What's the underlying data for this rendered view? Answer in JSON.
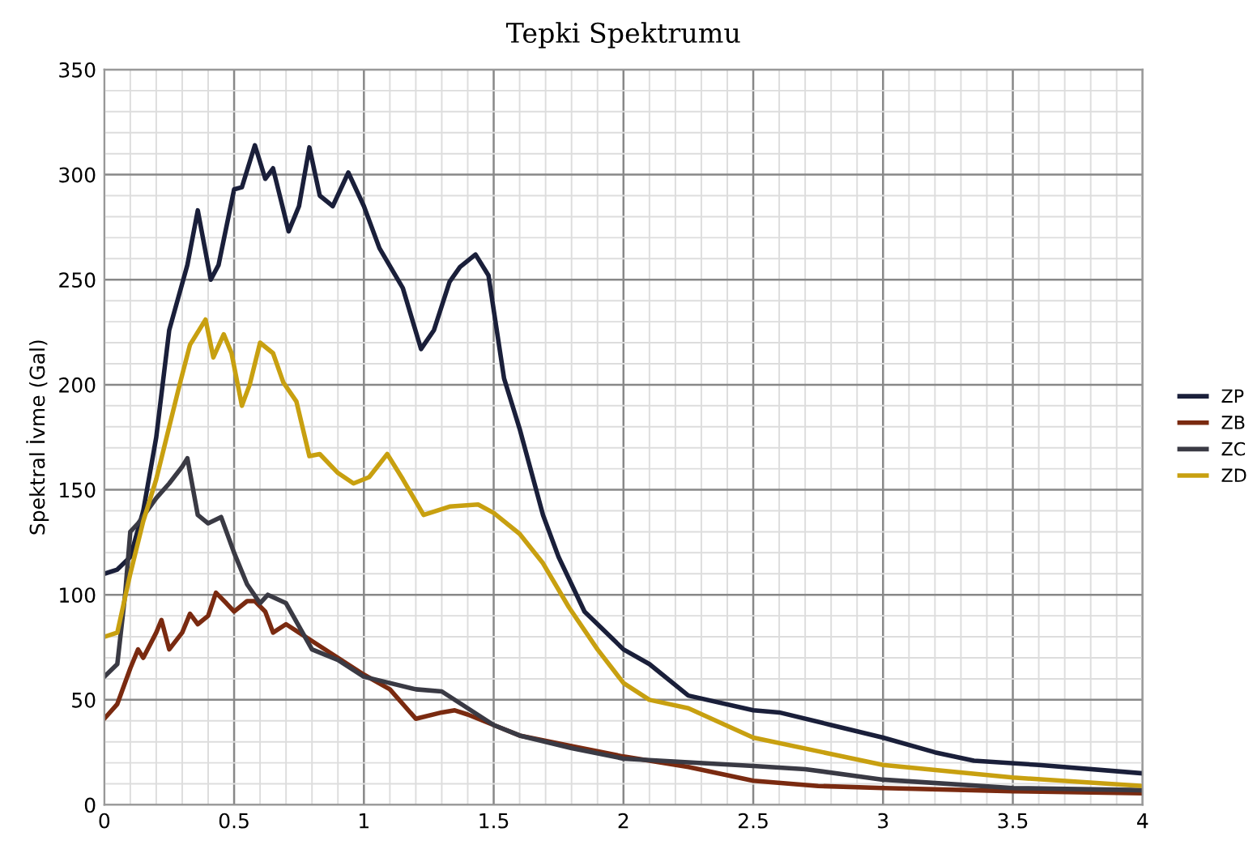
{
  "chart_data": {
    "type": "line",
    "title": "Tepki Spektrumu",
    "ylabel": "Spektral İvme (Gal)",
    "xlim": [
      0,
      4
    ],
    "xticks": [
      0,
      0.5,
      1,
      1.5,
      2,
      2.5,
      3,
      3.5,
      4
    ],
    "ylim": [
      0,
      350
    ],
    "yticks": [
      0,
      50,
      100,
      150,
      200,
      250,
      300,
      350
    ],
    "grid": true,
    "legend": "right",
    "line_style": "solid",
    "series": [
      {
        "name": "ZP",
        "color": "#1a1f3a",
        "x": [
          0,
          0.05,
          0.1,
          0.15,
          0.2,
          0.25,
          0.32,
          0.36,
          0.41,
          0.44,
          0.5,
          0.53,
          0.58,
          0.62,
          0.65,
          0.71,
          0.75,
          0.79,
          0.83,
          0.88,
          0.94,
          1.0,
          1.06,
          1.15,
          1.22,
          1.27,
          1.33,
          1.37,
          1.43,
          1.48,
          1.54,
          1.6,
          1.69,
          1.75,
          1.85,
          2.0,
          2.1,
          2.25,
          2.5,
          2.6,
          2.8,
          3.0,
          3.2,
          3.35,
          3.6,
          4.0
        ],
        "values": [
          110,
          112,
          118,
          140,
          175,
          226,
          257,
          283,
          250,
          257,
          293,
          294,
          314,
          298,
          303,
          273,
          285,
          313,
          290,
          285,
          301,
          285,
          265,
          246,
          217,
          226,
          249,
          256,
          262,
          252,
          203,
          179,
          138,
          118,
          92,
          74,
          67,
          52,
          45,
          44,
          38,
          32,
          25,
          21,
          19,
          15
        ]
      },
      {
        "name": "ZB",
        "color": "#7a2a10",
        "x": [
          0,
          0.05,
          0.1,
          0.13,
          0.15,
          0.2,
          0.22,
          0.25,
          0.3,
          0.33,
          0.36,
          0.4,
          0.43,
          0.47,
          0.5,
          0.55,
          0.58,
          0.62,
          0.65,
          0.7,
          0.75,
          0.8,
          0.9,
          1.0,
          1.1,
          1.2,
          1.3,
          1.35,
          1.4,
          1.5,
          1.6,
          1.8,
          2.0,
          2.25,
          2.5,
          2.75,
          3.0,
          3.5,
          4.0
        ],
        "values": [
          41,
          48,
          65,
          74,
          70,
          82,
          88,
          74,
          82,
          91,
          86,
          90,
          101,
          96,
          92,
          97,
          97,
          92,
          82,
          86,
          82,
          78,
          70,
          62,
          55,
          41,
          44,
          45,
          43,
          38,
          33,
          28,
          23,
          18,
          11.5,
          9,
          8,
          6.5,
          5.5
        ]
      },
      {
        "name": "ZC",
        "color": "#3a3a44",
        "x": [
          0,
          0.05,
          0.08,
          0.1,
          0.13,
          0.2,
          0.25,
          0.3,
          0.32,
          0.36,
          0.4,
          0.45,
          0.5,
          0.55,
          0.6,
          0.63,
          0.7,
          0.75,
          0.8,
          0.9,
          1.0,
          1.1,
          1.2,
          1.3,
          1.4,
          1.5,
          1.6,
          1.8,
          2.0,
          2.5,
          2.7,
          3.0,
          3.5,
          4.0
        ],
        "values": [
          61,
          67,
          100,
          130,
          134,
          146,
          153,
          161,
          165,
          138,
          134,
          137,
          120,
          105,
          96,
          100,
          96,
          85,
          74,
          69,
          61,
          58,
          55,
          54,
          46,
          38,
          33,
          27,
          22,
          18.5,
          17,
          12,
          8,
          7
        ]
      },
      {
        "name": "ZD",
        "color": "#c8a010",
        "x": [
          0,
          0.05,
          0.1,
          0.15,
          0.2,
          0.25,
          0.29,
          0.33,
          0.39,
          0.42,
          0.46,
          0.49,
          0.53,
          0.56,
          0.6,
          0.65,
          0.69,
          0.74,
          0.79,
          0.83,
          0.9,
          0.96,
          1.02,
          1.09,
          1.15,
          1.23,
          1.33,
          1.44,
          1.5,
          1.6,
          1.69,
          1.79,
          1.9,
          2.0,
          2.1,
          2.25,
          2.5,
          3.0,
          3.5,
          4.0
        ],
        "values": [
          80,
          82,
          110,
          135,
          155,
          180,
          200,
          219,
          231,
          213,
          224,
          215,
          190,
          200,
          220,
          215,
          201,
          192,
          166,
          167,
          158,
          153,
          156,
          167,
          155,
          138,
          142,
          143,
          139,
          129,
          115,
          94,
          74,
          58,
          50,
          46,
          32,
          19,
          13,
          9
        ]
      }
    ]
  }
}
